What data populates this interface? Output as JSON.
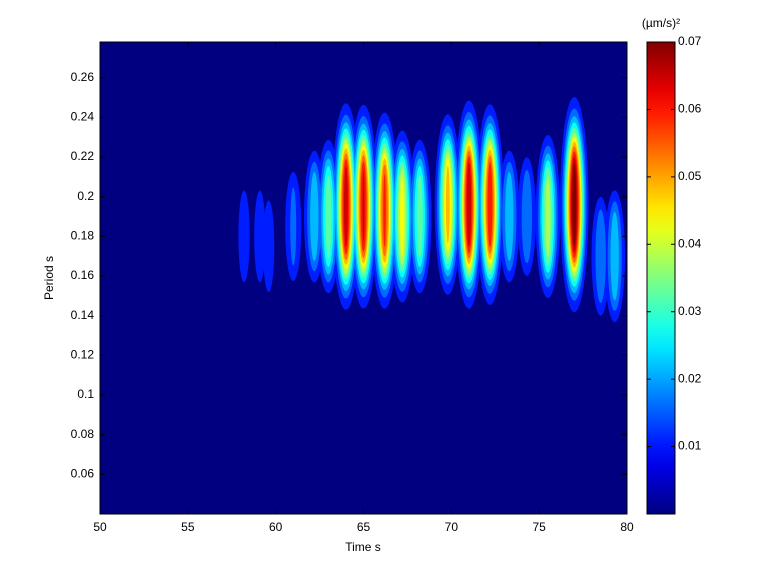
{
  "chart_data": {
    "type": "contour",
    "xlabel": "Time s",
    "ylabel": "Period s",
    "colorbar_label": "(µm/s)²",
    "xlim": [
      50,
      80
    ],
    "xticks": [
      50,
      55,
      60,
      65,
      70,
      75,
      80
    ],
    "ylim": [
      0.04,
      0.278
    ],
    "yticks": [
      0.06,
      0.08,
      0.1,
      0.12,
      0.14,
      0.16,
      0.18,
      0.2,
      0.22,
      0.24,
      0.26
    ],
    "clim": [
      0,
      0.07
    ],
    "cticks": [
      0.01,
      0.02,
      0.03,
      0.04,
      0.05,
      0.06,
      0.07
    ],
    "colormap": "jet",
    "peaks": {
      "x": [
        58.2,
        59.1,
        59.6,
        61.0,
        62.2,
        63.0,
        64.0,
        65.0,
        66.2,
        67.2,
        68.2,
        69.8,
        71.0,
        72.2,
        73.3,
        74.3,
        75.5,
        77.0,
        78.5,
        79.3
      ],
      "y": [
        0.18,
        0.18,
        0.175,
        0.185,
        0.19,
        0.19,
        0.195,
        0.195,
        0.193,
        0.19,
        0.19,
        0.196,
        0.196,
        0.196,
        0.19,
        0.19,
        0.19,
        0.196,
        0.17,
        0.17
      ],
      "values": [
        0.008,
        0.008,
        0.008,
        0.012,
        0.02,
        0.03,
        0.062,
        0.06,
        0.055,
        0.04,
        0.03,
        0.045,
        0.063,
        0.058,
        0.02,
        0.015,
        0.035,
        0.068,
        0.015,
        0.02
      ]
    }
  }
}
